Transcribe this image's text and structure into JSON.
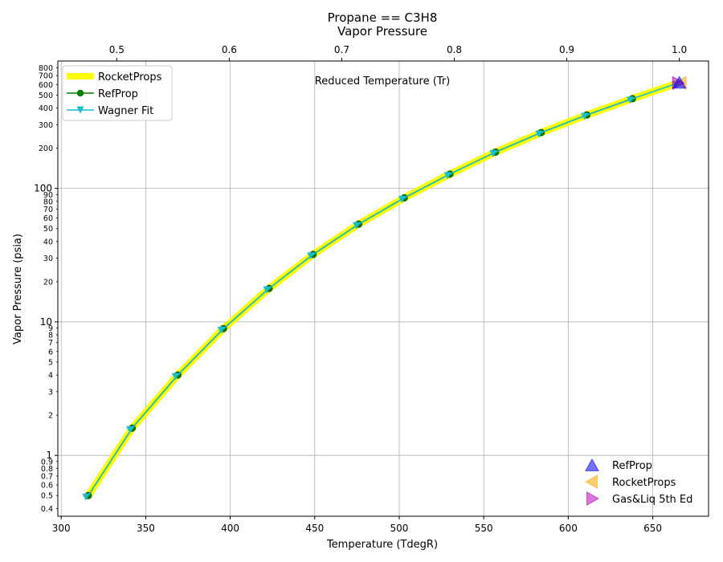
{
  "chart_data": {
    "type": "line",
    "title_line1": "Propane == C3H8",
    "title_line2": "Vapor Pressure",
    "xlabel": "Temperature (TdegR)",
    "ylabel": "Vapor Pressure (psia)",
    "x2label": "Reduced Temperature (Tr)",
    "xlim": [
      298,
      683
    ],
    "ylim": [
      0.35,
      900
    ],
    "yscale": "log",
    "x_ticks": [
      "300",
      "350",
      "400",
      "450",
      "500",
      "550",
      "600",
      "650"
    ],
    "x2_ticks": [
      "0.5",
      "0.6",
      "0.7",
      "0.8",
      "0.9",
      "1.0"
    ],
    "y_major_ticks": [
      "1",
      "10",
      "100"
    ],
    "y_minor_ticks": [
      "0.4",
      "0.5",
      "0.6",
      "0.7",
      "0.8",
      "0.9",
      "2",
      "3",
      "4",
      "5",
      "6",
      "7",
      "8",
      "9",
      "20",
      "30",
      "40",
      "50",
      "60",
      "70",
      "80",
      "90",
      "200",
      "300",
      "400",
      "500",
      "600",
      "700",
      "800"
    ],
    "grid": true,
    "legend_upper": "top-left",
    "legend_lower": "bottom-right",
    "series": [
      {
        "name": "RocketProps",
        "color": "#ffff00",
        "style": "thick-line",
        "x": [
          316,
          342,
          369,
          396,
          423,
          449,
          476,
          503,
          530,
          557,
          584,
          611,
          638,
          665
        ],
        "y": [
          0.5,
          1.6,
          4.0,
          8.9,
          17.8,
          32,
          54,
          85,
          128,
          187,
          262,
          355,
          470,
          616
        ]
      },
      {
        "name": "RefProp",
        "color": "#008000",
        "style": "line-circles",
        "x": [
          316,
          342,
          369,
          396,
          423,
          449,
          476,
          503,
          530,
          557,
          584,
          611,
          638
        ],
        "y": [
          0.5,
          1.6,
          4.0,
          8.9,
          17.8,
          32,
          54,
          85,
          128,
          187,
          262,
          355,
          470
        ]
      },
      {
        "name": "Wagner Fit",
        "color": "#17becf",
        "style": "line-triangles-down",
        "x": [
          316,
          342,
          369,
          396,
          423,
          449,
          476,
          503,
          530,
          557,
          584,
          611,
          638,
          665
        ],
        "y": [
          0.5,
          1.6,
          4.0,
          8.9,
          17.8,
          32,
          54,
          85,
          128,
          187,
          262,
          355,
          470,
          616
        ]
      }
    ],
    "critical_points": [
      {
        "name": "RefProp",
        "marker": "triangle-up",
        "color": "#0000ff",
        "x": 665.7,
        "y": 616.6
      },
      {
        "name": "RocketProps",
        "marker": "triangle-left",
        "color": "#ffa500",
        "x": 665.7,
        "y": 616.6
      },
      {
        "name": "Gas&Liq 5th Ed",
        "marker": "triangle-right",
        "color": "#bf00bf",
        "x": 665.7,
        "y": 616.0
      }
    ]
  }
}
